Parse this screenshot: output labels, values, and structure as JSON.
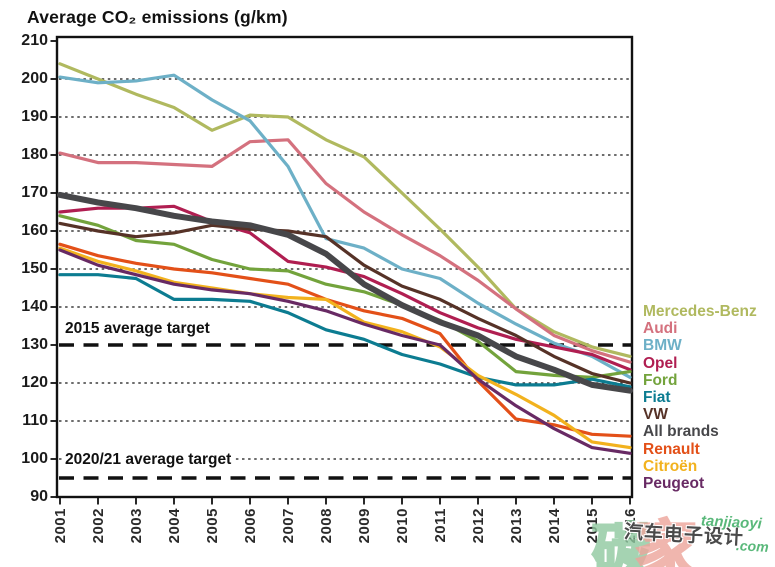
{
  "title": "Average CO₂ emissions (g/km)",
  "chart_data": {
    "type": "line",
    "x": [
      2001,
      2002,
      2003,
      2004,
      2005,
      2006,
      2007,
      2008,
      2009,
      2010,
      2011,
      2012,
      2013,
      2014,
      2015,
      2016
    ],
    "xlabel": "",
    "ylabel": "Average CO₂ emissions (g/km)",
    "ylim": [
      90,
      210
    ],
    "ytick_step": 10,
    "grid": "horizontal dotted lines every 10 g/km",
    "legend_position": "right",
    "series": [
      {
        "name": "Mercedes-Benz",
        "color": "#b0b95f",
        "values": [
          204,
          200,
          196,
          192.5,
          186.5,
          190.5,
          190,
          184,
          179.5,
          170,
          160.5,
          150.5,
          139.5,
          133.5,
          129.5,
          127
        ]
      },
      {
        "name": "Audi",
        "color": "#d4717e",
        "values": [
          180.5,
          178,
          178,
          177.5,
          177,
          183.5,
          184,
          172.5,
          165,
          159,
          153.5,
          147,
          139.5,
          132.5,
          128.5,
          125.5
        ]
      },
      {
        "name": "BMW",
        "color": "#6db0c7",
        "values": [
          200.5,
          199,
          199.5,
          201,
          194.5,
          189,
          177,
          158,
          155.5,
          150,
          147.5,
          141,
          135.5,
          130.5,
          127,
          121.5
        ]
      },
      {
        "name": "Opel",
        "color": "#b01e51",
        "values": [
          165,
          166,
          166,
          166.5,
          162.5,
          159.5,
          152,
          150.5,
          148,
          143.5,
          138.5,
          134.5,
          131.5,
          129.5,
          127.5,
          123.5
        ]
      },
      {
        "name": "Ford",
        "color": "#73a33c",
        "values": [
          164,
          161.5,
          157.5,
          156.5,
          152.5,
          150,
          149.5,
          146,
          144,
          140.5,
          136.5,
          131,
          123,
          122,
          121.5,
          123
        ]
      },
      {
        "name": "Fiat",
        "color": "#0c7c91",
        "values": [
          148.5,
          148.5,
          147.5,
          142,
          142,
          141.5,
          138.5,
          134,
          131.5,
          127.5,
          125,
          121.5,
          119.5,
          119.5,
          121,
          119
        ]
      },
      {
        "name": "VW",
        "color": "#563227",
        "values": [
          162,
          160,
          158.5,
          159.5,
          161.5,
          160.5,
          160,
          158.5,
          151,
          145.5,
          142,
          137,
          132.5,
          127,
          122.5,
          120
        ]
      },
      {
        "name": "All brands",
        "color": "#47474a",
        "values": [
          169.5,
          167.5,
          166,
          164,
          162.5,
          161.5,
          159,
          154,
          146,
          140.5,
          136,
          132.5,
          127,
          123.5,
          119.5,
          118
        ],
        "emphasis": true
      },
      {
        "name": "Renault",
        "color": "#e35018",
        "values": [
          156.5,
          153.5,
          151.5,
          150,
          149,
          147.5,
          146,
          142,
          139,
          137,
          133,
          120.5,
          110.5,
          109,
          106.5,
          106
        ]
      },
      {
        "name": "Citroën",
        "color": "#f2b21e",
        "values": [
          155.5,
          152,
          149.5,
          146.5,
          145,
          143.5,
          142.5,
          142,
          136,
          133.5,
          129.5,
          122,
          117,
          111.5,
          104.5,
          103
        ]
      },
      {
        "name": "Peugeot",
        "color": "#682a64",
        "values": [
          155,
          151,
          148.5,
          146,
          144.5,
          143.5,
          141.5,
          139,
          135.5,
          132.5,
          130,
          121,
          114,
          108,
          103,
          101.5
        ]
      }
    ],
    "targets": [
      {
        "label": "2015 average target",
        "value": 130
      },
      {
        "label": "2020/21 average target",
        "value": 95
      }
    ]
  },
  "watermark": {
    "big_chars": [
      {
        "text": "碳",
        "color": "#8fc9a0"
      },
      {
        "text": "家",
        "color": "#eda49b"
      }
    ],
    "cn_text": "汽车电子设计",
    "latin_text": "tanjiaoyi",
    "suffix": ".com"
  }
}
